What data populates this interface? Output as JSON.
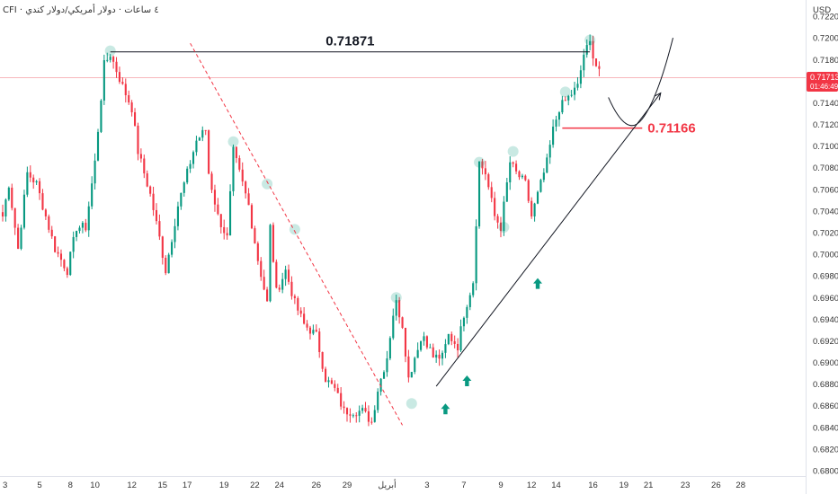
{
  "header": {
    "symbol_label": "CFI · ٤ ساعات · دولار أمريكي/دولار كندي",
    "currency": "USD"
  },
  "colors": {
    "up": "#089981",
    "down": "#f23645",
    "trend": "#131722",
    "dashed": "#f23645",
    "support": "#f23645",
    "price_tag": "#f23645",
    "marker": "#089981"
  },
  "chart_data": {
    "type": "candlestick",
    "ylim": [
      0.6795,
      0.7235
    ],
    "y_ticks": [
      0.722,
      0.72,
      0.718,
      0.716,
      0.714,
      0.712,
      0.71,
      0.708,
      0.706,
      0.704,
      0.702,
      0.7,
      0.698,
      0.696,
      0.694,
      0.692,
      0.69,
      0.688,
      0.686,
      0.684,
      0.682,
      0.68
    ],
    "x_ticks": [
      {
        "label": "3",
        "x": 0
      },
      {
        "label": "5",
        "x": 12
      },
      {
        "label": "8",
        "x": 22
      },
      {
        "label": "10",
        "x": 30
      },
      {
        "label": "12",
        "x": 42
      },
      {
        "label": "15",
        "x": 52
      },
      {
        "label": "17",
        "x": 60
      },
      {
        "label": "19",
        "x": 72
      },
      {
        "label": "22",
        "x": 82
      },
      {
        "label": "24",
        "x": 90
      },
      {
        "label": "26",
        "x": 102
      },
      {
        "label": "29",
        "x": 112
      },
      {
        "label": "أبريل",
        "x": 125
      },
      {
        "label": "3",
        "x": 138
      },
      {
        "label": "7",
        "x": 150
      },
      {
        "label": "9",
        "x": 162
      },
      {
        "label": "12",
        "x": 172
      },
      {
        "label": "14",
        "x": 180
      },
      {
        "label": "16",
        "x": 192
      },
      {
        "label": "19",
        "x": 202
      },
      {
        "label": "21",
        "x": 210
      },
      {
        "label": "23",
        "x": 222
      },
      {
        "label": "26",
        "x": 232
      },
      {
        "label": "28",
        "x": 240
      }
    ],
    "x_range": [
      0,
      255
    ],
    "anchors": [
      [
        0,
        0.7035
      ],
      [
        2,
        0.7065
      ],
      [
        5,
        0.7005
      ],
      [
        8,
        0.7075
      ],
      [
        11,
        0.7065
      ],
      [
        14,
        0.7035
      ],
      [
        17,
        0.7005
      ],
      [
        21,
        0.6985
      ],
      [
        24,
        0.7025
      ],
      [
        27,
        0.7025
      ],
      [
        30,
        0.7085
      ],
      [
        33,
        0.7175
      ],
      [
        35,
        0.7185
      ],
      [
        39,
        0.7155
      ],
      [
        42,
        0.7135
      ],
      [
        44,
        0.7095
      ],
      [
        48,
        0.7055
      ],
      [
        51,
        0.7015
      ],
      [
        53,
        0.6985
      ],
      [
        57,
        0.7045
      ],
      [
        60,
        0.7075
      ],
      [
        63,
        0.7105
      ],
      [
        66,
        0.7115
      ],
      [
        67,
        0.7075
      ],
      [
        70,
        0.7035
      ],
      [
        73,
        0.7015
      ],
      [
        75,
        0.7095
      ],
      [
        77,
        0.7075
      ],
      [
        80,
        0.7045
      ],
      [
        83,
        0.6995
      ],
      [
        86,
        0.6955
      ],
      [
        87,
        0.7025
      ],
      [
        89,
        0.6965
      ],
      [
        92,
        0.6985
      ],
      [
        95,
        0.6955
      ],
      [
        98,
        0.6935
      ],
      [
        102,
        0.6925
      ],
      [
        105,
        0.6885
      ],
      [
        108,
        0.6875
      ],
      [
        111,
        0.6855
      ],
      [
        114,
        0.6855
      ],
      [
        117,
        0.6855
      ],
      [
        120,
        0.6845
      ],
      [
        122,
        0.6875
      ],
      [
        125,
        0.6905
      ],
      [
        127,
        0.6945
      ],
      [
        128,
        0.6955
      ],
      [
        130,
        0.6935
      ],
      [
        132,
        0.6885
      ],
      [
        135,
        0.6915
      ],
      [
        137,
        0.6925
      ],
      [
        140,
        0.6905
      ],
      [
        143,
        0.6905
      ],
      [
        145,
        0.6925
      ],
      [
        148,
        0.6915
      ],
      [
        150,
        0.6945
      ],
      [
        153,
        0.6975
      ],
      [
        155,
        0.7085
      ],
      [
        157,
        0.7075
      ],
      [
        160,
        0.7035
      ],
      [
        162,
        0.7025
      ],
      [
        165,
        0.7085
      ],
      [
        167,
        0.7075
      ],
      [
        170,
        0.7065
      ],
      [
        172,
        0.7035
      ],
      [
        174,
        0.7055
      ],
      [
        177,
        0.7085
      ],
      [
        179,
        0.7115
      ],
      [
        181,
        0.7135
      ],
      [
        184,
        0.7145
      ],
      [
        187,
        0.7155
      ],
      [
        189,
        0.7185
      ],
      [
        191,
        0.7195
      ],
      [
        193,
        0.7175
      ],
      [
        194,
        0.71713
      ]
    ],
    "resistance": {
      "label": "0.71871",
      "value": 0.71871,
      "x_start": 35,
      "x_end": 191
    },
    "support": {
      "label": "0.71166",
      "value": 0.71166,
      "x_start": 182,
      "x_end": 208
    },
    "current_price": {
      "value": 0.71713,
      "label": "0.71713",
      "countdown": "01:46:49"
    },
    "dashed_trend": {
      "from": [
        61,
        0.7195
      ],
      "to": [
        130,
        0.6842
      ]
    },
    "up_trend": {
      "from": [
        141,
        0.6878
      ],
      "to": [
        214,
        0.7149
      ]
    },
    "projection": {
      "points": [
        [
          197,
          0.7145
        ],
        [
          203,
          0.7118
        ],
        [
          208,
          0.7125
        ],
        [
          214,
          0.717
        ],
        [
          218,
          0.72
        ]
      ]
    },
    "highlight_points": [
      [
        35,
        0.7188
      ],
      [
        75,
        0.7104
      ],
      [
        86,
        0.7065
      ],
      [
        95,
        0.7023
      ],
      [
        128,
        0.696
      ],
      [
        133,
        0.6862
      ],
      [
        155,
        0.7085
      ],
      [
        163,
        0.7025
      ],
      [
        166,
        0.7095
      ],
      [
        183,
        0.715
      ],
      [
        191,
        0.7198
      ]
    ],
    "up_arrows": [
      [
        144,
        0.6862
      ],
      [
        151,
        0.6888
      ],
      [
        174,
        0.6978
      ]
    ]
  }
}
